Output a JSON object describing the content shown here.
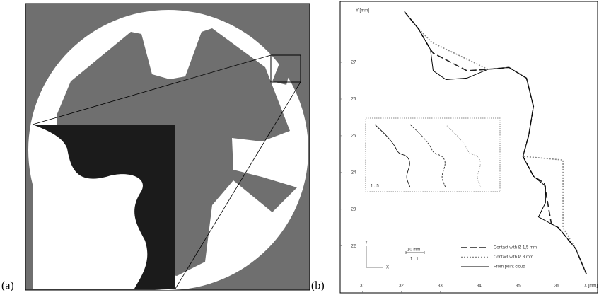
{
  "panel_labels": [
    "(a)",
    "(b)"
  ],
  "chart_data": {
    "type": "line",
    "x_label": "X [mm]",
    "y_label": "Y [mm]",
    "xlim": [
      30.5,
      37.05
    ],
    "ylim": [
      21.05,
      28.6
    ],
    "xticks": [
      31,
      32,
      33,
      34,
      35,
      36
    ],
    "yticks": [
      22,
      23,
      24,
      25,
      26,
      27
    ],
    "series": [
      {
        "name": "Contact with Ø 1,5 mm",
        "color": "#222222",
        "dash": "dashed",
        "x": [
          32.08,
          32.43,
          32.75,
          32.82,
          33.69,
          34.23,
          34.77,
          35.22,
          35.4,
          35.28,
          35.13,
          35.4,
          35.68,
          35.86,
          36.04,
          36.49,
          36.76
        ],
        "values": [
          28.38,
          27.93,
          27.35,
          27.25,
          26.77,
          26.81,
          26.86,
          26.57,
          25.8,
          25.02,
          24.44,
          23.9,
          23.71,
          22.6,
          22.5,
          21.92,
          21.24
        ]
      },
      {
        "name": "Contact with Ø 3 mm",
        "color": "#888888",
        "dash": "dotted",
        "x": [
          32.08,
          32.43,
          32.79,
          34.23,
          34.77,
          35.22,
          35.4,
          35.28,
          35.13,
          36.16,
          36.16,
          36.49,
          36.76
        ],
        "values": [
          28.38,
          27.93,
          27.54,
          26.81,
          26.86,
          26.57,
          25.8,
          25.02,
          24.44,
          24.34,
          22.5,
          21.92,
          21.24
        ]
      },
      {
        "name": "From point cloud",
        "color": "#000000",
        "dash": "solid",
        "x": [
          32.08,
          32.43,
          32.75,
          32.82,
          33.15,
          33.69,
          34.23,
          34.77,
          35.22,
          35.4,
          35.28,
          35.13,
          35.4,
          35.71,
          35.71,
          35.53,
          36.04,
          36.49,
          36.76
        ],
        "values": [
          28.38,
          27.93,
          27.35,
          26.77,
          26.53,
          26.57,
          26.81,
          26.86,
          26.57,
          25.8,
          25.02,
          24.44,
          23.9,
          23.63,
          23.18,
          22.79,
          22.5,
          21.92,
          21.24
        ]
      }
    ],
    "annotations": [
      "1 : 5",
      "10 mm",
      "1 : 1",
      "Y",
      "X"
    ]
  }
}
